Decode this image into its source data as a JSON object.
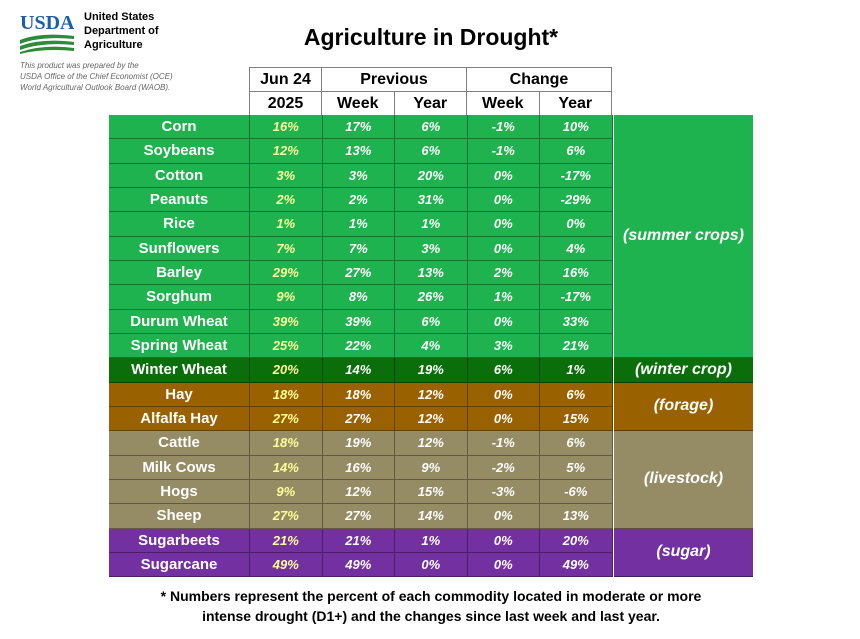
{
  "header": {
    "logo_text": "USDA",
    "agency_lines": [
      "United States",
      "Department of",
      "Agriculture"
    ],
    "prepared_lines": [
      "This product was prepared by the",
      "USDA Office of the Chief Economist (OCE)",
      "World Agricultural Outlook Board (WAOB)."
    ],
    "title": "Agriculture in Drought*"
  },
  "columns": {
    "current_top": "Jun 24",
    "current_bottom": "2025",
    "previous": "Previous",
    "change": "Change",
    "week": "Week",
    "year": "Year"
  },
  "colors": {
    "summer": "#1fb34f",
    "winter": "#0a6e0a",
    "forage": "#996100",
    "livestock": "#958b64",
    "sugar": "#7330a0",
    "current_text": "#ffff99",
    "usda_blue": "#1d5ea8",
    "usda_green": "#2e8b3a"
  },
  "rows": [
    {
      "name": "Corn",
      "cur": "16%",
      "pw": "17%",
      "py": "6%",
      "cw": "-1%",
      "cy": "10%",
      "group": "summer"
    },
    {
      "name": "Soybeans",
      "cur": "12%",
      "pw": "13%",
      "py": "6%",
      "cw": "-1%",
      "cy": "6%",
      "group": "summer"
    },
    {
      "name": "Cotton",
      "cur": "3%",
      "pw": "3%",
      "py": "20%",
      "cw": "0%",
      "cy": "-17%",
      "group": "summer"
    },
    {
      "name": "Peanuts",
      "cur": "2%",
      "pw": "2%",
      "py": "31%",
      "cw": "0%",
      "cy": "-29%",
      "group": "summer"
    },
    {
      "name": "Rice",
      "cur": "1%",
      "pw": "1%",
      "py": "1%",
      "cw": "0%",
      "cy": "0%",
      "group": "summer"
    },
    {
      "name": "Sunflowers",
      "cur": "7%",
      "pw": "7%",
      "py": "3%",
      "cw": "0%",
      "cy": "4%",
      "group": "summer"
    },
    {
      "name": "Barley",
      "cur": "29%",
      "pw": "27%",
      "py": "13%",
      "cw": "2%",
      "cy": "16%",
      "group": "summer"
    },
    {
      "name": "Sorghum",
      "cur": "9%",
      "pw": "8%",
      "py": "26%",
      "cw": "1%",
      "cy": "-17%",
      "group": "summer"
    },
    {
      "name": "Durum Wheat",
      "cur": "39%",
      "pw": "39%",
      "py": "6%",
      "cw": "0%",
      "cy": "33%",
      "group": "summer"
    },
    {
      "name": "Spring Wheat",
      "cur": "25%",
      "pw": "22%",
      "py": "4%",
      "cw": "3%",
      "cy": "21%",
      "group": "summer"
    },
    {
      "name": "Winter Wheat",
      "cur": "20%",
      "pw": "14%",
      "py": "19%",
      "cw": "6%",
      "cy": "1%",
      "group": "winter"
    },
    {
      "name": "Hay",
      "cur": "18%",
      "pw": "18%",
      "py": "12%",
      "cw": "0%",
      "cy": "6%",
      "group": "forage"
    },
    {
      "name": "Alfalfa Hay",
      "cur": "27%",
      "pw": "27%",
      "py": "12%",
      "cw": "0%",
      "cy": "15%",
      "group": "forage"
    },
    {
      "name": "Cattle",
      "cur": "18%",
      "pw": "19%",
      "py": "12%",
      "cw": "-1%",
      "cy": "6%",
      "group": "livestock"
    },
    {
      "name": "Milk Cows",
      "cur": "14%",
      "pw": "16%",
      "py": "9%",
      "cw": "-2%",
      "cy": "5%",
      "group": "livestock"
    },
    {
      "name": "Hogs",
      "cur": "9%",
      "pw": "12%",
      "py": "15%",
      "cw": "-3%",
      "cy": "-6%",
      "group": "livestock"
    },
    {
      "name": "Sheep",
      "cur": "27%",
      "pw": "27%",
      "py": "14%",
      "cw": "0%",
      "cy": "13%",
      "group": "livestock"
    },
    {
      "name": "Sugarbeets",
      "cur": "21%",
      "pw": "21%",
      "py": "1%",
      "cw": "0%",
      "cy": "20%",
      "group": "sugar"
    },
    {
      "name": "Sugarcane",
      "cur": "49%",
      "pw": "49%",
      "py": "0%",
      "cw": "0%",
      "cy": "49%",
      "group": "sugar"
    }
  ],
  "groups": [
    {
      "key": "summer",
      "label": "(summer crops)"
    },
    {
      "key": "winter",
      "label": "(winter crop)"
    },
    {
      "key": "forage",
      "label": "(forage)"
    },
    {
      "key": "livestock",
      "label": "(livestock)"
    },
    {
      "key": "sugar",
      "label": "(sugar)"
    }
  ],
  "footnote": {
    "line1": "* Numbers represent the percent of each commodity located in moderate or more",
    "line2": "intense drought (D1+) and the changes since last week and last year."
  }
}
